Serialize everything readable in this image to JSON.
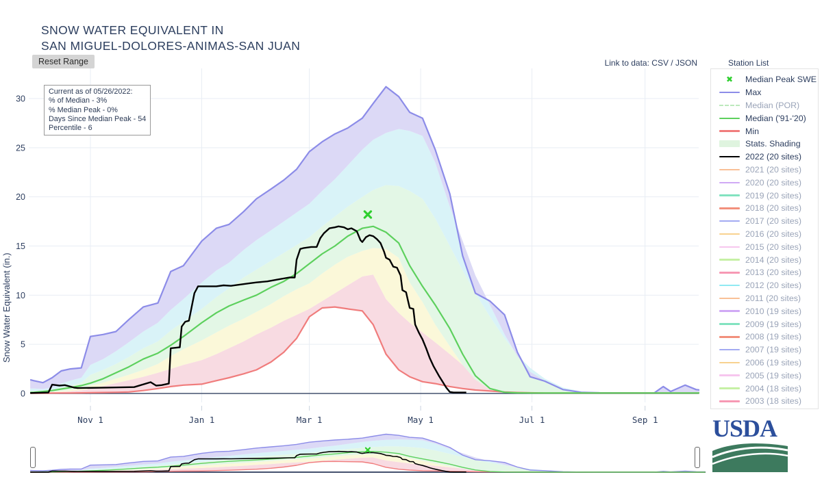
{
  "header": {
    "title_lines": [
      "SNOW WATER EQUIVALENT IN",
      "SAN MIGUEL-DOLORES-ANIMAS-SAN JUAN"
    ],
    "reset_button": "Reset Range",
    "link_prefix": "Link to data: ",
    "link_csv": "CSV",
    "link_sep": " / ",
    "link_json": "JSON",
    "station_list": "Station List"
  },
  "info_box": {
    "lines": [
      "Current as of 05/26/2022:",
      "% of Median - 3%",
      "% Median Peak - 0%",
      "Days Since Median Peak - 54",
      "Percentile - 6"
    ]
  },
  "usda": {
    "text": "USDA"
  },
  "colors": {
    "band_outer": "#dcd9f6",
    "band_90": "#d9f3f8",
    "band_stats": "#e3f7e6",
    "band_30": "#fbf8d9",
    "band_10": "#f8dbe2",
    "line_max": "#8c8ce8",
    "line_min": "#f07c7c",
    "line_median": "#5dd05d",
    "line_2022": "#000000",
    "marker": "#2fcf2f",
    "axis": "#44516e",
    "grid": "#e8edf4",
    "tick": "#c9d2de",
    "text": "#2d3e5f",
    "text_muted": "#9aa4b8"
  },
  "legend": {
    "title": "Station List",
    "items": [
      {
        "label": "Median Peak SWE",
        "swatch": "marker-x",
        "color": "#2fcf2f",
        "active": true
      },
      {
        "label": "Max",
        "swatch": "line",
        "color": "#8c8ce8",
        "active": true
      },
      {
        "label": "Median (POR)",
        "swatch": "dashed",
        "color": "#bce9bc",
        "active": false
      },
      {
        "label": "Median ('91-'20)",
        "swatch": "line",
        "color": "#5dd05d",
        "active": true
      },
      {
        "label": "Min",
        "swatch": "line",
        "color": "#f07c7c",
        "active": true
      },
      {
        "label": "Stats. Shading",
        "swatch": "patch",
        "color": "#dff4df",
        "active": true
      },
      {
        "label": "2022 (20 sites)",
        "swatch": "line",
        "color": "#000000",
        "active": true
      },
      {
        "label": "2021 (20 sites)",
        "swatch": "line",
        "color": "#f9c096",
        "active": false
      },
      {
        "label": "2020 (20 sites)",
        "swatch": "line",
        "color": "#d0a9f5",
        "active": false
      },
      {
        "label": "2019 (20 sites)",
        "swatch": "line",
        "color": "#82e3c0",
        "active": false
      },
      {
        "label": "2018 (20 sites)",
        "swatch": "line",
        "color": "#f2907c",
        "active": false
      },
      {
        "label": "2017 (20 sites)",
        "swatch": "line",
        "color": "#a3aaf2",
        "active": false
      },
      {
        "label": "2016 (20 sites)",
        "swatch": "line",
        "color": "#f8d28f",
        "active": false
      },
      {
        "label": "2015 (20 sites)",
        "swatch": "line",
        "color": "#f7c6ee",
        "active": false
      },
      {
        "label": "2014 (20 sites)",
        "swatch": "line",
        "color": "#c6f0a5",
        "active": false
      },
      {
        "label": "2013 (20 sites)",
        "swatch": "line",
        "color": "#f799b4",
        "active": false
      },
      {
        "label": "2012 (20 sites)",
        "swatch": "line",
        "color": "#90e9f2",
        "active": false
      },
      {
        "label": "2011 (20 sites)",
        "swatch": "line",
        "color": "#f9c096",
        "active": false
      },
      {
        "label": "2010 (19 sites)",
        "swatch": "line",
        "color": "#d0a9f5",
        "active": false
      },
      {
        "label": "2009 (19 sites)",
        "swatch": "line",
        "color": "#82e3c0",
        "active": false
      },
      {
        "label": "2008 (19 sites)",
        "swatch": "line",
        "color": "#f2907c",
        "active": false
      },
      {
        "label": "2007 (19 sites)",
        "swatch": "line",
        "color": "#a3aaf2",
        "active": false
      },
      {
        "label": "2006 (19 sites)",
        "swatch": "line",
        "color": "#f8d28f",
        "active": false
      },
      {
        "label": "2005 (19 sites)",
        "swatch": "line",
        "color": "#f7c6ee",
        "active": false
      },
      {
        "label": "2004 (18 sites)",
        "swatch": "line",
        "color": "#c6f0a5",
        "active": false
      },
      {
        "label": "2003 (18 sites)",
        "swatch": "line",
        "color": "#f799b4",
        "active": false
      }
    ]
  },
  "chart_data": {
    "type": "area",
    "title": "Snow Water Equivalent in San Miguel-Dolores-Animas-San Juan",
    "ylabel": "Snow Water Equivalent (in.)",
    "y_ticks": [
      0,
      5,
      10,
      15,
      20,
      25,
      30
    ],
    "ylim": [
      0,
      33
    ],
    "x_tick_days": [
      31,
      92,
      151,
      212,
      273,
      335
    ],
    "x_tick_labels": [
      "Nov  1",
      "Jan  1",
      "Mar  1",
      "May  1",
      "Jul  1",
      "Sep  1"
    ],
    "legend_position": "right",
    "grid": true,
    "day_zero": "Oct 1",
    "stat_days": [
      -2,
      0,
      5,
      10,
      15,
      20,
      26,
      31,
      38,
      45,
      52,
      60,
      68,
      75,
      82,
      92,
      100,
      107,
      115,
      122,
      130,
      137,
      144,
      151,
      158,
      165,
      172,
      180,
      186,
      193,
      200,
      206,
      213,
      220,
      228,
      235,
      242,
      250,
      258,
      265,
      272,
      280,
      290,
      300,
      310,
      340,
      345,
      349,
      357,
      363,
      368
    ],
    "bands": {
      "max": [
        1.4,
        1.3,
        1.1,
        1.6,
        2.3,
        2.5,
        2.6,
        5.8,
        6.0,
        6.3,
        7.5,
        8.8,
        9.2,
        12.4,
        13.0,
        15.5,
        16.8,
        17.2,
        18.5,
        19.8,
        20.8,
        21.7,
        22.8,
        24.6,
        25.6,
        26.4,
        27.0,
        28.0,
        29.5,
        31.2,
        30.2,
        28.6,
        28.0,
        24.8,
        20.3,
        14.0,
        10.2,
        9.4,
        8.0,
        4.2,
        1.7,
        1.25,
        0.4,
        0.12,
        0.07,
        0.05,
        0.7,
        0.2,
        0.85,
        0.4,
        0.3
      ],
      "p90": [
        0.5,
        0.5,
        0.45,
        0.6,
        1.0,
        1.3,
        1.6,
        2.9,
        3.5,
        4.3,
        5.2,
        6.3,
        7.2,
        8.5,
        9.6,
        11.3,
        12.5,
        13.3,
        14.6,
        15.6,
        16.6,
        17.5,
        18.4,
        19.3,
        20.6,
        21.8,
        23.2,
        24.8,
        25.8,
        26.5,
        26.9,
        26.7,
        26.2,
        23.5,
        19.0,
        15.5,
        12.0,
        9.0,
        6.0,
        3.8,
        2.2,
        1.3,
        0.4,
        0.15,
        0.08,
        0.05,
        0.05,
        0.05,
        0.1,
        0.07,
        0.06
      ],
      "p70": [
        0.25,
        0.25,
        0.3,
        0.4,
        0.6,
        0.8,
        1.1,
        1.9,
        2.4,
        3.0,
        3.7,
        4.6,
        5.3,
        6.4,
        7.3,
        8.6,
        9.8,
        10.7,
        11.8,
        12.6,
        13.5,
        14.3,
        15.1,
        15.9,
        17.0,
        18.0,
        19.0,
        20.0,
        20.7,
        21.2,
        21.1,
        20.6,
        19.8,
        17.8,
        15.0,
        12.5,
        10.2,
        7.8,
        5.6,
        3.9,
        2.6,
        1.5,
        0.6,
        0.2,
        0.1,
        0.05,
        0.05,
        0.05,
        0.07,
        0.05,
        0.05
      ],
      "median": [
        0.1,
        0.12,
        0.2,
        0.3,
        0.45,
        0.6,
        0.8,
        1.05,
        1.5,
        2.1,
        2.7,
        3.5,
        4.1,
        4.9,
        5.8,
        7.2,
        8.2,
        8.9,
        9.5,
        10.0,
        10.8,
        11.4,
        12.2,
        13.2,
        14.2,
        15.0,
        16.0,
        16.8,
        17.0,
        16.4,
        15.3,
        13.0,
        10.9,
        9.0,
        6.6,
        4.0,
        1.8,
        0.5,
        0.12,
        0.06,
        0.05,
        0.05,
        0.05,
        0.05,
        0.05,
        0.05,
        0.05,
        0.05,
        0.05,
        0.05,
        0.05
      ],
      "p30": [
        0.05,
        0.06,
        0.1,
        0.16,
        0.25,
        0.35,
        0.5,
        0.8,
        1.1,
        1.5,
        1.9,
        2.4,
        3.0,
        3.8,
        4.5,
        5.4,
        6.2,
        6.9,
        7.6,
        8.3,
        9.1,
        9.9,
        10.6,
        11.2,
        12.2,
        13.1,
        13.9,
        14.5,
        14.8,
        14.7,
        13.8,
        11.3,
        9.3,
        7.0,
        4.8,
        2.9,
        1.4,
        0.4,
        0.1,
        0.05,
        0.04,
        0.04,
        0.04,
        0.04,
        0.04,
        0.04,
        0.04,
        0.04,
        0.04,
        0.04,
        0.04
      ],
      "p10": [
        0.03,
        0.04,
        0.06,
        0.1,
        0.15,
        0.22,
        0.32,
        0.5,
        0.75,
        1.05,
        1.35,
        1.7,
        2.1,
        2.5,
        2.9,
        3.4,
        4.0,
        4.6,
        5.3,
        6.0,
        6.7,
        7.4,
        8.0,
        8.6,
        9.4,
        10.2,
        11.0,
        11.9,
        12.1,
        9.6,
        8.2,
        7.2,
        6.2,
        5.2,
        4.0,
        2.9,
        1.6,
        0.6,
        0.3,
        0.12,
        0.07,
        0.05,
        0.04,
        0.04,
        0.04,
        0.04,
        0.04,
        0.04,
        0.04,
        0.04,
        0.04
      ],
      "min": [
        0.02,
        0.02,
        0.03,
        0.04,
        0.05,
        0.05,
        0.06,
        0.08,
        0.1,
        0.12,
        0.15,
        0.3,
        0.5,
        0.7,
        0.85,
        0.95,
        1.3,
        1.6,
        2.0,
        2.4,
        3.2,
        4.2,
        5.6,
        7.8,
        8.7,
        8.8,
        8.6,
        8.4,
        7.0,
        4.0,
        2.4,
        1.7,
        1.2,
        1.0,
        0.7,
        0.5,
        0.35,
        0.25,
        0.15,
        0.1,
        0.07,
        0.05,
        0.04,
        0.04,
        0.04,
        0.04,
        0.04,
        0.04,
        0.04,
        0.04,
        0.04
      ]
    },
    "line_2022": [
      [
        -2,
        0.05
      ],
      [
        8,
        0.1
      ],
      [
        10,
        0.9
      ],
      [
        14,
        0.8
      ],
      [
        17,
        0.85
      ],
      [
        22,
        0.6
      ],
      [
        24,
        0.55
      ],
      [
        40,
        0.6
      ],
      [
        55,
        0.65
      ],
      [
        64,
        1.15
      ],
      [
        67,
        0.8
      ],
      [
        70,
        0.85
      ],
      [
        74,
        1.0
      ],
      [
        75,
        4.6
      ],
      [
        80,
        4.7
      ],
      [
        81,
        6.8
      ],
      [
        83,
        7.3
      ],
      [
        85,
        7.4
      ],
      [
        88,
        10.2
      ],
      [
        90,
        10.9
      ],
      [
        100,
        10.9
      ],
      [
        104,
        11.0
      ],
      [
        108,
        10.95
      ],
      [
        118,
        11.2
      ],
      [
        122,
        11.3
      ],
      [
        128,
        11.4
      ],
      [
        134,
        11.6
      ],
      [
        140,
        11.8
      ],
      [
        143,
        11.8
      ],
      [
        144,
        13.6
      ],
      [
        146,
        14.7
      ],
      [
        148,
        14.8
      ],
      [
        152,
        14.9
      ],
      [
        155,
        14.9
      ],
      [
        157,
        15.8
      ],
      [
        159,
        16.3
      ],
      [
        162,
        16.8
      ],
      [
        165,
        16.9
      ],
      [
        167,
        17.0
      ],
      [
        170,
        16.9
      ],
      [
        172,
        16.7
      ],
      [
        174,
        16.8
      ],
      [
        177,
        16.5
      ],
      [
        179,
        15.6
      ],
      [
        180,
        15.4
      ],
      [
        182,
        15.9
      ],
      [
        184,
        16.1
      ],
      [
        186,
        16.0
      ],
      [
        188,
        15.7
      ],
      [
        190,
        15.3
      ],
      [
        192,
        14.4
      ],
      [
        193,
        13.8
      ],
      [
        195,
        13.6
      ],
      [
        197,
        12.9
      ],
      [
        199,
        12.8
      ],
      [
        201,
        12.0
      ],
      [
        202,
        10.5
      ],
      [
        204,
        10.3
      ],
      [
        205,
        9.5
      ],
      [
        206,
        8.7
      ],
      [
        208,
        8.6
      ],
      [
        209,
        7.0
      ],
      [
        211,
        6.2
      ],
      [
        213,
        5.5
      ],
      [
        215,
        4.6
      ],
      [
        217,
        3.6
      ],
      [
        219,
        2.8
      ],
      [
        222,
        1.8
      ],
      [
        224,
        1.2
      ],
      [
        226,
        0.6
      ],
      [
        228,
        0.15
      ],
      [
        230,
        0.1
      ],
      [
        237,
        0.1
      ]
    ],
    "median_peak_marker": {
      "day": 183,
      "value": 18.2
    }
  }
}
